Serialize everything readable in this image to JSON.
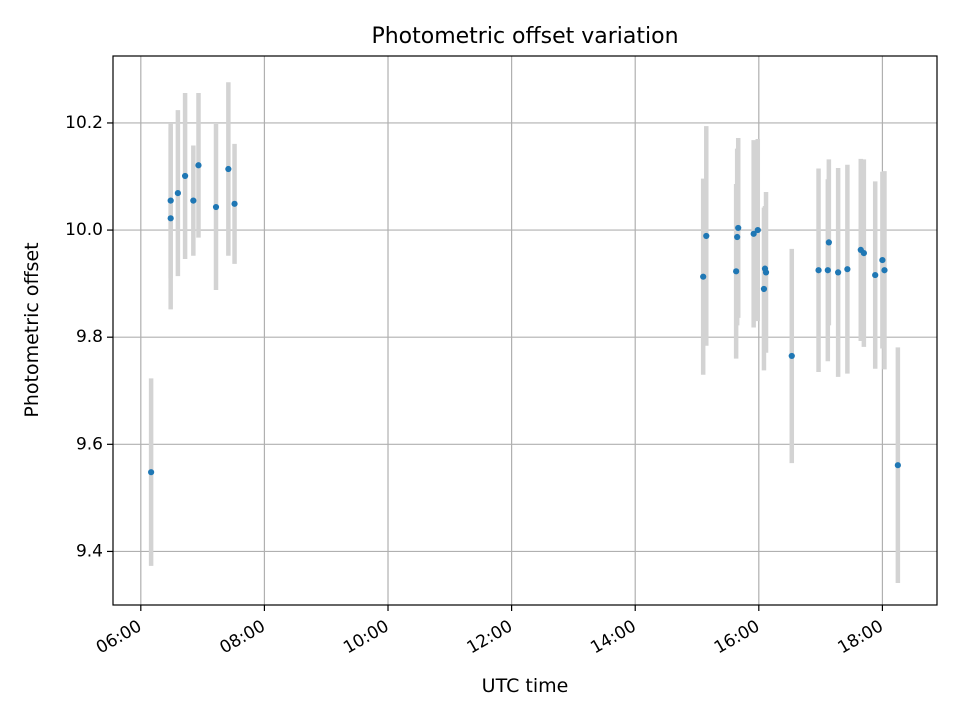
{
  "chart_data": {
    "type": "scatter",
    "title": "Photometric offset variation",
    "xlabel": "UTC time",
    "ylabel": "Photometric offset",
    "xlim": [
      "05:33",
      "18:53"
    ],
    "ylim": [
      9.3,
      10.325
    ],
    "x_ticks": [
      "06:00",
      "08:00",
      "10:00",
      "12:00",
      "14:00",
      "16:00",
      "18:00"
    ],
    "y_ticks": [
      "9.4",
      "9.6",
      "9.8",
      "10.0",
      "10.2"
    ],
    "grid": true,
    "colors": {
      "point": "#1f77b4",
      "errorbar": "#d3d3d3",
      "grid": "#b0b0b0"
    },
    "points": [
      {
        "x": "06:10",
        "y": 9.548,
        "err": 0.175
      },
      {
        "x": "06:29",
        "y": 10.055,
        "err": 0.145
      },
      {
        "x": "06:29",
        "y": 10.022,
        "err": 0.17
      },
      {
        "x": "06:36",
        "y": 10.069,
        "err": 0.155
      },
      {
        "x": "06:43",
        "y": 10.101,
        "err": 0.155
      },
      {
        "x": "06:51",
        "y": 10.055,
        "err": 0.103
      },
      {
        "x": "06:56",
        "y": 10.121,
        "err": 0.135
      },
      {
        "x": "07:13",
        "y": 10.043,
        "err": 0.155
      },
      {
        "x": "07:25",
        "y": 10.114,
        "err": 0.162
      },
      {
        "x": "07:31",
        "y": 10.049,
        "err": 0.112
      },
      {
        "x": "15:06",
        "y": 9.913,
        "err": 0.183
      },
      {
        "x": "15:09",
        "y": 9.989,
        "err": 0.205
      },
      {
        "x": "15:38",
        "y": 9.923,
        "err": 0.163
      },
      {
        "x": "15:39",
        "y": 9.987,
        "err": 0.165
      },
      {
        "x": "15:40",
        "y": 10.004,
        "err": 0.168
      },
      {
        "x": "15:55",
        "y": 9.993,
        "err": 0.175
      },
      {
        "x": "15:59",
        "y": 10.0,
        "err": 0.17
      },
      {
        "x": "16:05",
        "y": 9.89,
        "err": 0.152
      },
      {
        "x": "16:06",
        "y": 9.928,
        "err": 0.117
      },
      {
        "x": "16:07",
        "y": 9.921,
        "err": 0.15
      },
      {
        "x": "16:32",
        "y": 9.765,
        "err": 0.2
      },
      {
        "x": "16:58",
        "y": 9.925,
        "err": 0.19
      },
      {
        "x": "17:07",
        "y": 9.925,
        "err": 0.17
      },
      {
        "x": "17:08",
        "y": 9.977,
        "err": 0.155
      },
      {
        "x": "17:17",
        "y": 9.921,
        "err": 0.195
      },
      {
        "x": "17:26",
        "y": 9.927,
        "err": 0.195
      },
      {
        "x": "17:39",
        "y": 9.963,
        "err": 0.17
      },
      {
        "x": "17:42",
        "y": 9.957,
        "err": 0.175
      },
      {
        "x": "17:53",
        "y": 9.916,
        "err": 0.175
      },
      {
        "x": "18:00",
        "y": 9.944,
        "err": 0.165
      },
      {
        "x": "18:02",
        "y": 9.925,
        "err": 0.185
      },
      {
        "x": "18:15",
        "y": 9.561,
        "err": 0.22
      }
    ]
  }
}
